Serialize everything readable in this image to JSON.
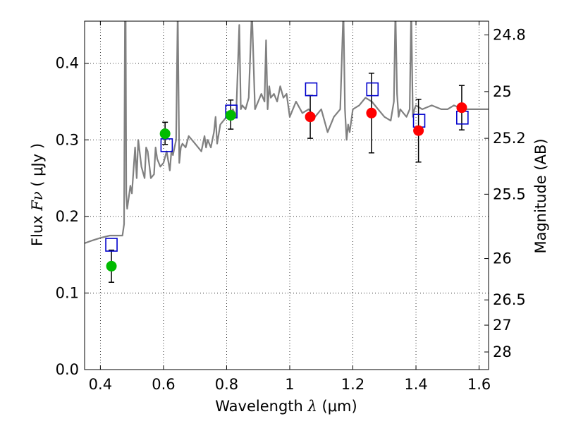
{
  "chart_data": {
    "type": "scatter",
    "title": "",
    "xlabel_prefix": "Wavelength  ",
    "xlabel_symbol": "λ",
    "xlabel_suffix": " (μm)",
    "ylabel_prefix": "Flux  ",
    "ylabel_symbol": "Fν",
    "ylabel_suffix": " ( μJy )",
    "y2label": "Magnitude (AB)",
    "xlim": [
      0.35,
      1.63
    ],
    "ylim": [
      0.0,
      0.455
    ],
    "xticks": [
      0.4,
      0.6,
      0.8,
      1.0,
      1.2,
      1.4,
      1.6
    ],
    "xtick_labels": [
      "0.4",
      "0.6",
      "0.8",
      "1",
      "1.2",
      "1.4",
      "1.6"
    ],
    "yticks": [
      0.0,
      0.1,
      0.2,
      0.3,
      0.4
    ],
    "ytick_labels": [
      "0.0",
      "0.1",
      "0.2",
      "0.3",
      "0.4"
    ],
    "y2ticks": [
      {
        "label": "24.8",
        "flux": 0.437
      },
      {
        "label": "25",
        "flux": 0.363
      },
      {
        "label": "25.2",
        "flux": 0.302
      },
      {
        "label": "25.5",
        "flux": 0.229
      },
      {
        "label": "26",
        "flux": 0.145
      },
      {
        "label": "26.5",
        "flux": 0.091
      },
      {
        "label": "27",
        "flux": 0.058
      },
      {
        "label": "28",
        "flux": 0.023
      }
    ],
    "grid": true,
    "colors": {
      "spectrum": "#808080",
      "green_points": "#00bb00",
      "red_points": "#ff0000",
      "model_boxes": "#0000cc",
      "errorbars": "#000000"
    },
    "series": [
      {
        "kind": "line",
        "x": [
          0.35,
          0.37,
          0.4,
          0.43,
          0.45,
          0.47,
          0.475,
          0.478,
          0.48,
          0.482,
          0.485,
          0.49,
          0.495,
          0.5,
          0.51,
          0.515,
          0.52,
          0.53,
          0.54,
          0.545,
          0.55,
          0.56,
          0.57,
          0.575,
          0.58,
          0.59,
          0.6,
          0.61,
          0.62,
          0.625,
          0.63,
          0.64,
          0.645,
          0.65,
          0.655,
          0.66,
          0.67,
          0.68,
          0.7,
          0.72,
          0.73,
          0.735,
          0.74,
          0.75,
          0.76,
          0.765,
          0.77,
          0.78,
          0.8,
          0.82,
          0.83,
          0.84,
          0.845,
          0.85,
          0.86,
          0.87,
          0.88,
          0.89,
          0.9,
          0.91,
          0.92,
          0.925,
          0.93,
          0.935,
          0.94,
          0.95,
          0.96,
          0.97,
          0.98,
          0.99,
          1.0,
          1.02,
          1.04,
          1.06,
          1.08,
          1.1,
          1.12,
          1.14,
          1.16,
          1.17,
          1.175,
          1.18,
          1.185,
          1.19,
          1.2,
          1.22,
          1.24,
          1.26,
          1.28,
          1.3,
          1.32,
          1.33,
          1.335,
          1.34,
          1.345,
          1.35,
          1.37,
          1.38,
          1.385,
          1.39,
          1.395,
          1.4,
          1.42,
          1.45,
          1.48,
          1.5,
          1.52,
          1.55,
          1.58,
          1.6,
          1.63
        ],
        "y": [
          0.165,
          0.168,
          0.172,
          0.175,
          0.175,
          0.175,
          0.19,
          0.47,
          0.47,
          0.23,
          0.21,
          0.225,
          0.24,
          0.23,
          0.29,
          0.25,
          0.3,
          0.265,
          0.25,
          0.29,
          0.285,
          0.25,
          0.255,
          0.29,
          0.275,
          0.265,
          0.27,
          0.285,
          0.26,
          0.285,
          0.28,
          0.3,
          0.47,
          0.27,
          0.29,
          0.295,
          0.29,
          0.305,
          0.295,
          0.285,
          0.305,
          0.29,
          0.3,
          0.29,
          0.31,
          0.33,
          0.295,
          0.32,
          0.33,
          0.34,
          0.33,
          0.45,
          0.34,
          0.345,
          0.34,
          0.355,
          0.47,
          0.34,
          0.35,
          0.36,
          0.35,
          0.43,
          0.34,
          0.37,
          0.355,
          0.36,
          0.35,
          0.37,
          0.355,
          0.36,
          0.33,
          0.35,
          0.335,
          0.34,
          0.33,
          0.34,
          0.31,
          0.33,
          0.34,
          0.47,
          0.34,
          0.3,
          0.32,
          0.31,
          0.34,
          0.345,
          0.355,
          0.35,
          0.34,
          0.33,
          0.325,
          0.35,
          0.47,
          0.36,
          0.33,
          0.34,
          0.33,
          0.34,
          0.47,
          0.33,
          0.34,
          0.345,
          0.34,
          0.345,
          0.34,
          0.34,
          0.345,
          0.34,
          0.34,
          0.34,
          0.34
        ]
      },
      {
        "kind": "points",
        "marker": "circle",
        "x": [
          0.435,
          0.605,
          0.813
        ],
        "y": [
          0.135,
          0.308,
          0.332
        ],
        "yerr_low": [
          0.021,
          0.014,
          0.018
        ],
        "yerr_high": [
          0.021,
          0.015,
          0.02
        ]
      },
      {
        "kind": "points",
        "marker": "circle",
        "x": [
          1.065,
          1.259,
          1.408,
          1.545
        ],
        "y": [
          0.33,
          0.335,
          0.312,
          0.342
        ],
        "yerr_low": [
          0.028,
          0.052,
          0.041,
          0.029
        ],
        "yerr_high": [
          0.028,
          0.052,
          0.041,
          0.029
        ]
      },
      {
        "kind": "points",
        "marker": "open-square",
        "x": [
          0.435,
          0.61,
          0.815,
          1.068,
          1.262,
          1.41,
          1.547
        ],
        "y": [
          0.163,
          0.293,
          0.337,
          0.366,
          0.366,
          0.325,
          0.329
        ]
      }
    ]
  }
}
